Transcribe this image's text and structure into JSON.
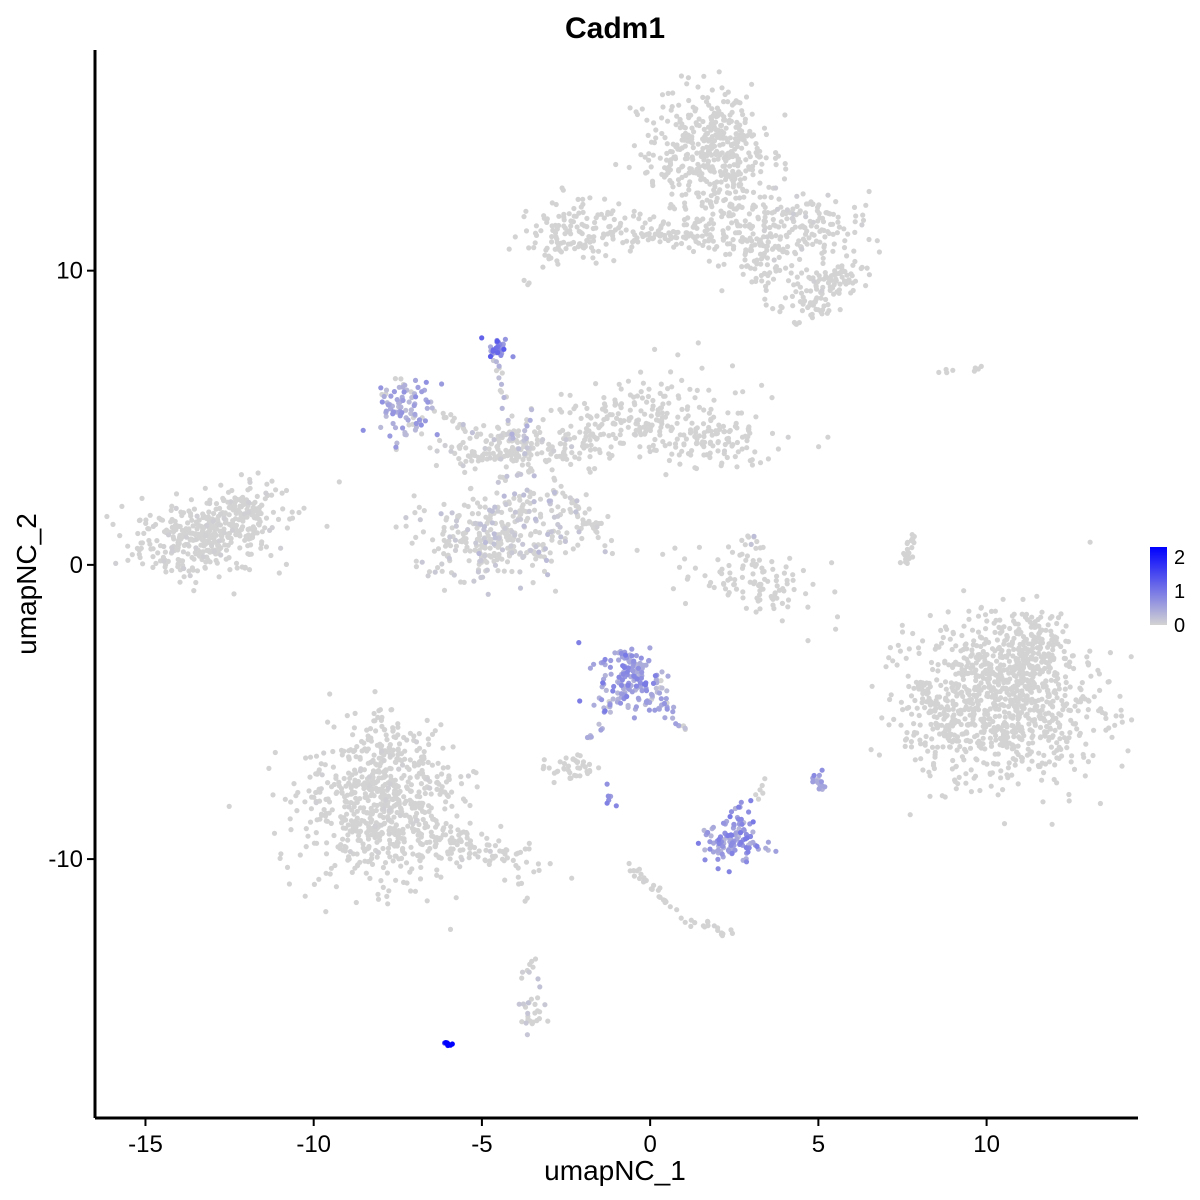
{
  "chart_data": {
    "type": "scatter",
    "title": "Cadm1",
    "xlabel": "umapNC_1",
    "ylabel": "umapNC_2",
    "xlim": [
      -16.5,
      14.5
    ],
    "ylim": [
      -18.8,
      17.5
    ],
    "x_ticks": [
      -15,
      -10,
      -5,
      0,
      5,
      10
    ],
    "y_ticks": [
      -10,
      0,
      10
    ],
    "x_tick_labels": [
      "-15",
      "-10",
      "-5",
      "0",
      "5",
      "10"
    ],
    "y_tick_labels": [
      "-10",
      "0",
      "10"
    ],
    "color_scale": {
      "low": "#d3d3d3",
      "high": "#0000ff",
      "min": 0,
      "max": 2.3,
      "ticks": [
        0,
        1,
        2
      ],
      "tick_labels": [
        "0",
        "1",
        "2"
      ]
    },
    "grid": false,
    "legend_position": "right",
    "clusters": [
      {
        "cx": -13.2,
        "cy": 1.0,
        "sx": 1.1,
        "sy": 0.6,
        "n": 380,
        "expr": 0.04,
        "tilt": 0.15
      },
      {
        "cx": -12.0,
        "cy": 2.0,
        "sx": 0.6,
        "sy": 0.4,
        "n": 80,
        "expr": 0.04,
        "tilt": 0.3
      },
      {
        "cx": -8.0,
        "cy": -8.4,
        "sx": 1.2,
        "sy": 1.2,
        "n": 620,
        "expr": 0.03,
        "tilt": 0.0
      },
      {
        "cx": -7.8,
        "cy": -6.4,
        "sx": 0.8,
        "sy": 0.8,
        "n": 120,
        "expr": 0.03,
        "tilt": 0.0
      },
      {
        "cx": -5.3,
        "cy": -9.6,
        "sx": 1.2,
        "sy": 0.3,
        "n": 90,
        "expr": 0.04,
        "tilt": -0.3
      },
      {
        "cx": -7.2,
        "cy": 5.4,
        "sx": 0.4,
        "sy": 0.55,
        "n": 90,
        "expr": 0.55,
        "tilt": 0.0
      },
      {
        "cx": -4.5,
        "cy": 7.4,
        "sx": 0.15,
        "sy": 0.15,
        "n": 30,
        "expr": 0.95,
        "tilt": 0.0
      },
      {
        "cx": -4.3,
        "cy": 3.9,
        "sx": 1.2,
        "sy": 0.35,
        "n": 130,
        "expr": 0.08,
        "tilt": 0.0
      },
      {
        "cx": -1.0,
        "cy": 4.8,
        "sx": 1.6,
        "sy": 0.6,
        "n": 230,
        "expr": 0.02,
        "tilt": 0.35
      },
      {
        "cx": 1.7,
        "cy": 4.3,
        "sx": 1.0,
        "sy": 0.5,
        "n": 130,
        "expr": 0.02,
        "tilt": 0.0
      },
      {
        "cx": -4.8,
        "cy": 0.8,
        "sx": 1.1,
        "sy": 0.7,
        "n": 230,
        "expr": 0.14,
        "tilt": 0.0
      },
      {
        "cx": -4.0,
        "cy": 1.6,
        "sx": 0.6,
        "sy": 1.1,
        "n": 100,
        "expr": 0.2,
        "tilt": 0.0
      },
      {
        "cx": -2.2,
        "cy": 1.5,
        "sx": 0.6,
        "sy": 0.5,
        "n": 40,
        "expr": 0.15,
        "tilt": -0.8
      },
      {
        "cx": -2.0,
        "cy": 11.3,
        "sx": 0.8,
        "sy": 0.5,
        "n": 140,
        "expr": 0.01,
        "tilt": 0.0
      },
      {
        "cx": 0.5,
        "cy": 11.2,
        "sx": 1.0,
        "sy": 0.12,
        "n": 45,
        "expr": 0.0,
        "tilt": 0.0
      },
      {
        "cx": 1.5,
        "cy": 14.0,
        "sx": 0.9,
        "sy": 1.0,
        "n": 380,
        "expr": 0.01,
        "tilt": 0.0
      },
      {
        "cx": 2.8,
        "cy": 12.6,
        "sx": 0.5,
        "sy": 1.4,
        "n": 120,
        "expr": 0.02,
        "tilt": 0.0
      },
      {
        "cx": 1.5,
        "cy": 11.4,
        "sx": 0.6,
        "sy": 0.5,
        "n": 60,
        "expr": 0.0,
        "tilt": 0.0
      },
      {
        "cx": 4.5,
        "cy": 11.5,
        "sx": 1.0,
        "sy": 0.55,
        "n": 160,
        "expr": 0.06,
        "tilt": 0.0
      },
      {
        "cx": 5.3,
        "cy": 9.6,
        "sx": 0.6,
        "sy": 0.35,
        "n": 80,
        "expr": 0.03,
        "tilt": 0.0
      },
      {
        "cx": 4.6,
        "cy": 8.8,
        "sx": 0.4,
        "sy": 0.3,
        "n": 40,
        "expr": 0.02,
        "tilt": 0.0
      },
      {
        "cx": 3.5,
        "cy": 10.3,
        "sx": 0.4,
        "sy": 0.6,
        "n": 50,
        "expr": 0.03,
        "tilt": 0.0
      },
      {
        "cx": -0.6,
        "cy": -3.8,
        "sx": 0.45,
        "sy": 0.55,
        "n": 140,
        "expr": 0.7,
        "tilt": 0.0
      },
      {
        "cx": 0.4,
        "cy": -4.6,
        "sx": 0.4,
        "sy": 0.3,
        "n": 30,
        "expr": 0.5,
        "tilt": 0.0
      },
      {
        "cx": 2.4,
        "cy": -9.5,
        "sx": 0.45,
        "sy": 0.35,
        "n": 90,
        "expr": 0.7,
        "tilt": 0.0
      },
      {
        "cx": 2.6,
        "cy": -8.8,
        "sx": 0.25,
        "sy": 0.3,
        "n": 30,
        "expr": 0.7,
        "tilt": 0.0
      },
      {
        "cx": 3.0,
        "cy": -0.6,
        "sx": 1.0,
        "sy": 0.5,
        "n": 110,
        "expr": 0.01,
        "tilt": -0.35
      },
      {
        "cx": 10.4,
        "cy": -4.8,
        "sx": 1.4,
        "sy": 1.3,
        "n": 900,
        "expr": 0.01,
        "tilt": 0.0
      },
      {
        "cx": 11.0,
        "cy": -3.0,
        "sx": 0.8,
        "sy": 0.7,
        "n": 200,
        "expr": 0.01,
        "tilt": 0.0
      },
      {
        "cx": -2.4,
        "cy": -6.9,
        "sx": 0.35,
        "sy": 0.2,
        "n": 40,
        "expr": 0.02,
        "tilt": 0.0
      },
      {
        "cx": 5.0,
        "cy": -7.3,
        "sx": 0.12,
        "sy": 0.18,
        "n": 16,
        "expr": 0.6,
        "tilt": 0.0
      },
      {
        "cx": -3.5,
        "cy": -14.8,
        "sx": 0.2,
        "sy": 0.5,
        "n": 28,
        "expr": 0.15,
        "tilt": 0.0
      },
      {
        "cx": -6.0,
        "cy": -16.3,
        "sx": 0.05,
        "sy": 0.04,
        "n": 10,
        "expr": 2.3,
        "tilt": 0.0
      }
    ],
    "trails": [
      {
        "x0": -4.6,
        "y0": 7.2,
        "x1": -4.1,
        "y1": 4.0,
        "n": 22,
        "expr": 0.3
      },
      {
        "x0": -3.6,
        "y0": 5.3,
        "x1": -3.9,
        "y1": 3.0,
        "n": 18,
        "expr": 0.3
      },
      {
        "x0": -6.3,
        "y0": 5.2,
        "x1": -4.5,
        "y1": 4.0,
        "n": 18,
        "expr": 0.2
      },
      {
        "x0": -2.8,
        "y0": 3.0,
        "x1": -1.4,
        "y1": 0.8,
        "n": 24,
        "expr": 0.05
      },
      {
        "x0": -1.0,
        "y0": -4.5,
        "x1": -1.8,
        "y1": -6.0,
        "n": 14,
        "expr": 0.5
      },
      {
        "x0": 0.5,
        "y0": -5.2,
        "x1": 1.0,
        "y1": -5.6,
        "n": 8,
        "expr": 0.4
      },
      {
        "x0": -0.6,
        "y0": -10.3,
        "x1": 0.9,
        "y1": -11.9,
        "n": 30,
        "expr": 0.02
      },
      {
        "x0": 1.0,
        "y0": -12.0,
        "x1": 2.4,
        "y1": -12.6,
        "n": 18,
        "expr": 0.05
      },
      {
        "x0": 7.8,
        "y0": 1.2,
        "x1": 7.6,
        "y1": 0.0,
        "n": 22,
        "expr": 0.0
      },
      {
        "x0": -3.8,
        "y0": 9.5,
        "x1": -2.5,
        "y1": 11.0,
        "n": 10,
        "expr": 0.0
      },
      {
        "x0": 8.0,
        "y0": -4.0,
        "x1": 9.0,
        "y1": -6.0,
        "n": 40,
        "expr": 0.0
      },
      {
        "x0": 2.9,
        "y0": 1.1,
        "x1": 3.2,
        "y1": 0.6,
        "n": 8,
        "expr": 0.2
      },
      {
        "x0": -1.3,
        "y0": -7.4,
        "x1": -1.0,
        "y1": -8.5,
        "n": 6,
        "expr": 0.7
      },
      {
        "x0": 3.1,
        "y0": -8.2,
        "x1": 3.4,
        "y1": -7.4,
        "n": 6,
        "expr": 0.05
      },
      {
        "x0": -4.0,
        "y0": -10.2,
        "x1": -3.7,
        "y1": -11.5,
        "n": 5,
        "expr": 0.0
      },
      {
        "x0": -3.5,
        "y0": -13.5,
        "x1": -3.8,
        "y1": -14.2,
        "n": 6,
        "expr": 0.1
      },
      {
        "x0": 8.4,
        "y0": 6.6,
        "x1": 9.9,
        "y1": 6.7,
        "n": 8,
        "expr": 0.0
      }
    ]
  }
}
